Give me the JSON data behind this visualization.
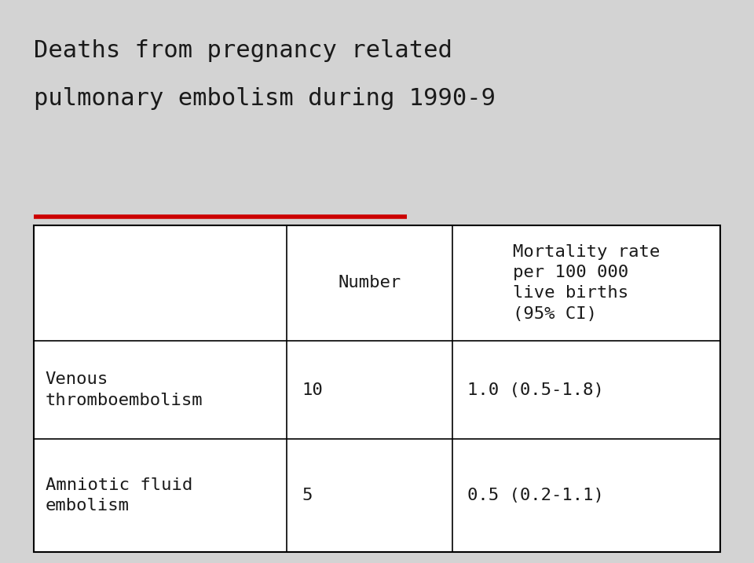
{
  "title_line1": "Deaths from pregnancy related",
  "title_line2": "pulmonary embolism during 1990-9",
  "background_color": "#d3d3d3",
  "title_color": "#1a1a1a",
  "red_line_color": "#cc0000",
  "table_bg": "#ffffff",
  "col_headers": [
    "",
    "Number",
    "Mortality rate\nper 100 000\nlive births\n(95% CI)"
  ],
  "rows": [
    [
      "Venous\nthromboembolism",
      "10",
      "1.0 (0.5-1.8)"
    ],
    [
      "Amniotic fluid\nembolism",
      "5",
      "0.5 (0.2-1.1)"
    ]
  ],
  "font_family": "monospace",
  "title_fontsize": 22,
  "table_fontsize": 16,
  "red_line_xstart": 0.045,
  "red_line_xend": 0.54,
  "red_line_y": 0.615
}
